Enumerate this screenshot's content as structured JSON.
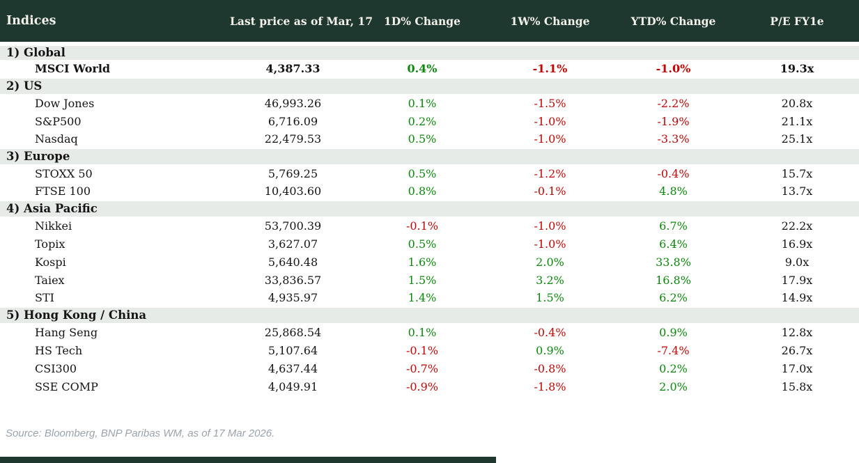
{
  "chart_data": {
    "type": "table",
    "title": "Indices",
    "columns": [
      "Indices",
      "Last price as of Mar, 17",
      "1D% Change",
      "1W% Change",
      "YTD% Change",
      "P/E FY1e"
    ],
    "sections": [
      {
        "label": "1) Global",
        "rows": [
          {
            "name": "MSCI World",
            "last_price": "4,387.33",
            "chg_1d": "0.4%",
            "chg_1w": "-1.1%",
            "chg_ytd": "-1.0%",
            "pe_fy1e": "19.3x",
            "emphasis": true
          }
        ]
      },
      {
        "label": "2) US",
        "rows": [
          {
            "name": "Dow Jones",
            "last_price": "46,993.26",
            "chg_1d": "0.1%",
            "chg_1w": "-1.5%",
            "chg_ytd": "-2.2%",
            "pe_fy1e": "20.8x",
            "emphasis": false
          },
          {
            "name": "S&P500",
            "last_price": "6,716.09",
            "chg_1d": "0.2%",
            "chg_1w": "-1.0%",
            "chg_ytd": "-1.9%",
            "pe_fy1e": "21.1x",
            "emphasis": false
          },
          {
            "name": "Nasdaq",
            "last_price": "22,479.53",
            "chg_1d": "0.5%",
            "chg_1w": "-1.0%",
            "chg_ytd": "-3.3%",
            "pe_fy1e": "25.1x",
            "emphasis": false
          }
        ]
      },
      {
        "label": "3) Europe",
        "rows": [
          {
            "name": "STOXX 50",
            "last_price": "5,769.25",
            "chg_1d": "0.5%",
            "chg_1w": "-1.2%",
            "chg_ytd": "-0.4%",
            "pe_fy1e": "15.7x",
            "emphasis": false
          },
          {
            "name": "FTSE 100",
            "last_price": "10,403.60",
            "chg_1d": "0.8%",
            "chg_1w": "-0.1%",
            "chg_ytd": "4.8%",
            "pe_fy1e": "13.7x",
            "emphasis": false
          }
        ]
      },
      {
        "label": "4) Asia Pacific",
        "rows": [
          {
            "name": "Nikkei",
            "last_price": "53,700.39",
            "chg_1d": "-0.1%",
            "chg_1w": "-1.0%",
            "chg_ytd": "6.7%",
            "pe_fy1e": "22.2x",
            "emphasis": false
          },
          {
            "name": "Topix",
            "last_price": "3,627.07",
            "chg_1d": "0.5%",
            "chg_1w": "-1.0%",
            "chg_ytd": "6.4%",
            "pe_fy1e": "16.9x",
            "emphasis": false
          },
          {
            "name": "Kospi",
            "last_price": "5,640.48",
            "chg_1d": "1.6%",
            "chg_1w": "2.0%",
            "chg_ytd": "33.8%",
            "pe_fy1e": "9.0x",
            "emphasis": false
          },
          {
            "name": "Taiex",
            "last_price": "33,836.57",
            "chg_1d": "1.5%",
            "chg_1w": "3.2%",
            "chg_ytd": "16.8%",
            "pe_fy1e": "17.9x",
            "emphasis": false
          },
          {
            "name": "STI",
            "last_price": "4,935.97",
            "chg_1d": "1.4%",
            "chg_1w": "1.5%",
            "chg_ytd": "6.2%",
            "pe_fy1e": "14.9x",
            "emphasis": false
          }
        ]
      },
      {
        "label": "5) Hong Kong / China",
        "rows": [
          {
            "name": "Hang Seng",
            "last_price": "25,868.54",
            "chg_1d": "0.1%",
            "chg_1w": "-0.4%",
            "chg_ytd": "0.9%",
            "pe_fy1e": "12.8x",
            "emphasis": false
          },
          {
            "name": "HS Tech",
            "last_price": "5,107.64",
            "chg_1d": "-0.1%",
            "chg_1w": "0.9%",
            "chg_ytd": "-7.4%",
            "pe_fy1e": "26.7x",
            "emphasis": false
          },
          {
            "name": "CSI300",
            "last_price": "4,637.44",
            "chg_1d": "-0.7%",
            "chg_1w": "-0.8%",
            "chg_ytd": "0.2%",
            "pe_fy1e": "17.0x",
            "emphasis": false
          },
          {
            "name": "SSE COMP",
            "last_price": "4,049.91",
            "chg_1d": "-0.9%",
            "chg_1w": "-1.8%",
            "chg_ytd": "2.0%",
            "pe_fy1e": "15.8x",
            "emphasis": false
          }
        ]
      }
    ]
  },
  "footer": {
    "source": "Source: Bloomberg, BNP Paribas WM, as of 17 Mar 2026."
  },
  "colors": {
    "header_bg": "#1e372f",
    "header_text": "#f2f1ea",
    "section_bg": "#e7ebe7",
    "positive": "#0b870b",
    "negative": "#c00606",
    "text": "#141414",
    "source_text": "#9aa3ac"
  }
}
